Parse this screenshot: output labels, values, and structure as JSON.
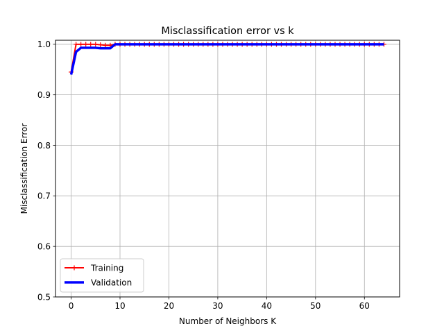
{
  "chart_data": {
    "type": "line",
    "title": "Misclassification error vs k",
    "xlabel": "Number of Neighbors K",
    "ylabel": "Misclassification Error",
    "xlim": [
      -3.2,
      67.2
    ],
    "ylim": [
      0.5,
      1.008
    ],
    "xticks": [
      0,
      10,
      20,
      30,
      40,
      50,
      60
    ],
    "yticks": [
      0.5,
      0.6,
      0.7,
      0.8,
      0.9,
      1.0
    ],
    "xtick_labels": [
      "0",
      "10",
      "20",
      "30",
      "40",
      "50",
      "60"
    ],
    "ytick_labels": [
      "0.5",
      "0.6",
      "0.7",
      "0.8",
      "0.9",
      "1.0"
    ],
    "grid": true,
    "legend_position": "lower-left",
    "series": [
      {
        "name": "Training",
        "color": "#ff0000",
        "marker": "plus",
        "x": [
          0,
          1,
          2,
          3,
          4,
          5,
          6,
          7,
          8,
          9,
          10,
          11,
          12,
          13,
          14,
          15,
          16,
          17,
          18,
          19,
          20,
          21,
          22,
          23,
          24,
          25,
          26,
          27,
          28,
          29,
          30,
          31,
          32,
          33,
          34,
          35,
          36,
          37,
          38,
          39,
          40,
          41,
          42,
          43,
          44,
          45,
          46,
          47,
          48,
          49,
          50,
          51,
          52,
          53,
          54,
          55,
          56,
          57,
          58,
          59,
          60,
          61,
          62,
          63,
          64
        ],
        "y": [
          0.945,
          1.0,
          1.0,
          1.0,
          1.0,
          1.0,
          0.999,
          0.998,
          0.998,
          1.0,
          1.0,
          1.0,
          1.0,
          1.0,
          1.0,
          1.0,
          1.0,
          1.0,
          1.0,
          1.0,
          1.0,
          1.0,
          1.0,
          1.0,
          1.0,
          1.0,
          1.0,
          1.0,
          1.0,
          1.0,
          1.0,
          1.0,
          1.0,
          1.0,
          1.0,
          1.0,
          1.0,
          1.0,
          1.0,
          1.0,
          1.0,
          1.0,
          1.0,
          1.0,
          1.0,
          1.0,
          1.0,
          1.0,
          1.0,
          1.0,
          1.0,
          1.0,
          1.0,
          1.0,
          1.0,
          1.0,
          1.0,
          1.0,
          1.0,
          1.0,
          1.0,
          1.0,
          1.0,
          1.0,
          1.0
        ]
      },
      {
        "name": "Validation",
        "color": "#0000ff",
        "marker": "none",
        "x": [
          0,
          1,
          2,
          3,
          4,
          5,
          6,
          7,
          8,
          9,
          10,
          11,
          12,
          13,
          14,
          15,
          16,
          17,
          18,
          19,
          20,
          21,
          22,
          23,
          24,
          25,
          26,
          27,
          28,
          29,
          30,
          31,
          32,
          33,
          34,
          35,
          36,
          37,
          38,
          39,
          40,
          41,
          42,
          43,
          44,
          45,
          46,
          47,
          48,
          49,
          50,
          51,
          52,
          53,
          54,
          55,
          56,
          57,
          58,
          59,
          60,
          61,
          62,
          63,
          64
        ],
        "y": [
          0.94,
          0.985,
          0.993,
          0.993,
          0.993,
          0.993,
          0.992,
          0.992,
          0.992,
          1.0,
          1.0,
          1.0,
          1.0,
          1.0,
          1.0,
          1.0,
          1.0,
          1.0,
          1.0,
          1.0,
          1.0,
          1.0,
          1.0,
          1.0,
          1.0,
          1.0,
          1.0,
          1.0,
          1.0,
          1.0,
          1.0,
          1.0,
          1.0,
          1.0,
          1.0,
          1.0,
          1.0,
          1.0,
          1.0,
          1.0,
          1.0,
          1.0,
          1.0,
          1.0,
          1.0,
          1.0,
          1.0,
          1.0,
          1.0,
          1.0,
          1.0,
          1.0,
          1.0,
          1.0,
          1.0,
          1.0,
          1.0,
          1.0,
          1.0,
          1.0,
          1.0,
          1.0,
          1.0,
          1.0,
          1.0
        ]
      }
    ]
  }
}
